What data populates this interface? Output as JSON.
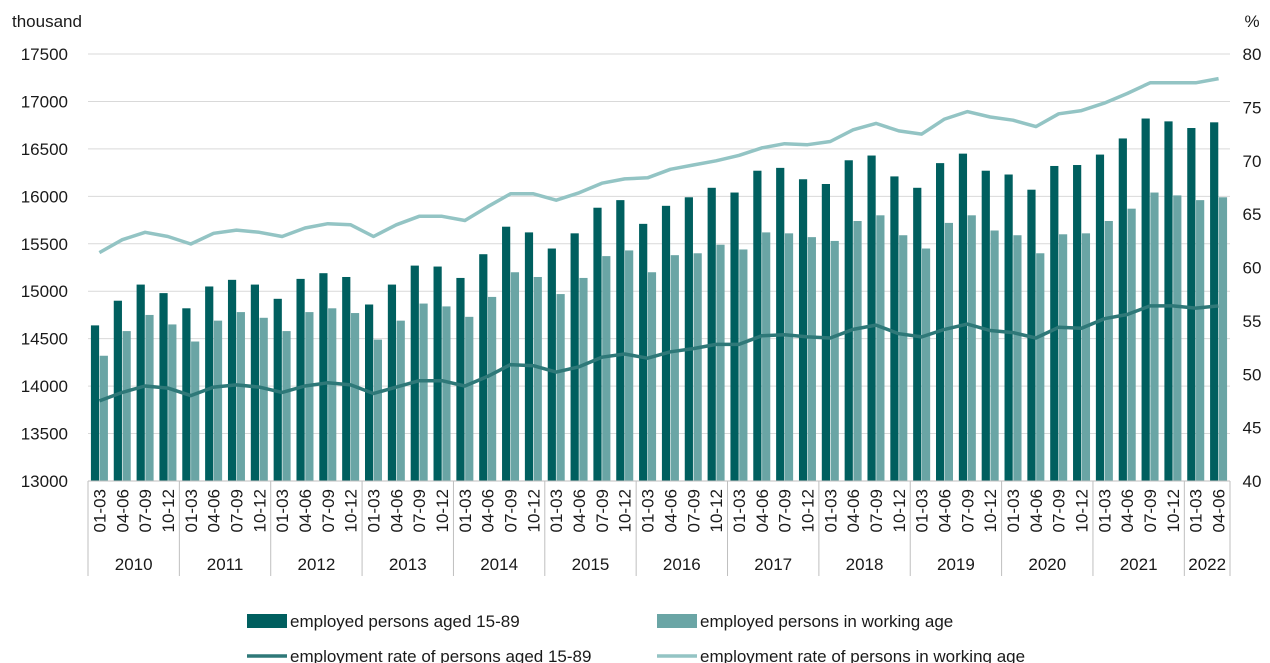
{
  "chart_data": {
    "type": "bar",
    "left_axis_unit": "thousand",
    "right_axis_unit": "%",
    "left_axis": {
      "ylim": [
        13000,
        17500
      ],
      "ticks": [
        13000,
        13500,
        14000,
        14500,
        15000,
        15500,
        16000,
        16500,
        17000,
        17500
      ]
    },
    "right_axis": {
      "ylim": [
        40,
        80
      ],
      "ticks": [
        40,
        45,
        50,
        55,
        60,
        65,
        70,
        75,
        80
      ]
    },
    "grid": true,
    "legend_position": "bottom",
    "colors": {
      "employed_15_89": "#005f5f",
      "employed_working_age": "#6aa5a5",
      "rate_15_89": "#2e7878",
      "rate_working_age": "#93c4c4"
    },
    "categories": [
      "01-03",
      "04-06",
      "07-09",
      "10-12",
      "01-03",
      "04-06",
      "07-09",
      "10-12",
      "01-03",
      "04-06",
      "07-09",
      "10-12",
      "01-03",
      "04-06",
      "07-09",
      "10-12",
      "01-03",
      "04-06",
      "07-09",
      "10-12",
      "01-03",
      "04-06",
      "07-09",
      "10-12",
      "01-03",
      "04-06",
      "07-09",
      "10-12",
      "01-03",
      "04-06",
      "07-09",
      "10-12",
      "01-03",
      "04-06",
      "07-09",
      "10-12",
      "01-03",
      "04-06",
      "07-09",
      "10-12",
      "01-03",
      "04-06",
      "07-09",
      "10-12",
      "01-03",
      "04-06",
      "07-09",
      "10-12",
      "01-03",
      "04-06"
    ],
    "years": [
      {
        "label": "2010",
        "count": 4
      },
      {
        "label": "2011",
        "count": 4
      },
      {
        "label": "2012",
        "count": 4
      },
      {
        "label": "2013",
        "count": 4
      },
      {
        "label": "2014",
        "count": 4
      },
      {
        "label": "2015",
        "count": 4
      },
      {
        "label": "2016",
        "count": 4
      },
      {
        "label": "2017",
        "count": 4
      },
      {
        "label": "2018",
        "count": 4
      },
      {
        "label": "2019",
        "count": 4
      },
      {
        "label": "2020",
        "count": 4
      },
      {
        "label": "2021",
        "count": 4
      },
      {
        "label": "2022",
        "count": 2
      }
    ],
    "series": [
      {
        "name": "employed persons aged 15-89",
        "type": "bar",
        "axis": "left",
        "values": [
          14640,
          14900,
          15070,
          14980,
          14820,
          15050,
          15120,
          15070,
          14920,
          15130,
          15190,
          15150,
          14860,
          15070,
          15270,
          15260,
          15140,
          15390,
          15680,
          15620,
          15450,
          15610,
          15880,
          15960,
          15710,
          15900,
          15990,
          16090,
          16040,
          16270,
          16300,
          16180,
          16130,
          16380,
          16430,
          16210,
          16090,
          16350,
          16450,
          16270,
          16230,
          16070,
          16320,
          16330,
          16440,
          16610,
          16820,
          16790,
          16720,
          16780
        ]
      },
      {
        "name": "employed persons in working age",
        "type": "bar",
        "axis": "left",
        "values": [
          14320,
          14580,
          14750,
          14650,
          14470,
          14690,
          14780,
          14720,
          14580,
          14780,
          14820,
          14770,
          14490,
          14690,
          14870,
          14840,
          14730,
          14940,
          15200,
          15150,
          14970,
          15140,
          15370,
          15430,
          15200,
          15380,
          15400,
          15490,
          15440,
          15620,
          15610,
          15570,
          15530,
          15740,
          15800,
          15590,
          15450,
          15720,
          15800,
          15640,
          15590,
          15400,
          15600,
          15610,
          15740,
          15870,
          16040,
          16010,
          15960,
          15990
        ]
      },
      {
        "name": "employment rate of persons aged 15-89",
        "type": "line",
        "axis": "right",
        "values": [
          47.5,
          48.3,
          48.9,
          48.7,
          48.0,
          48.8,
          49.0,
          48.8,
          48.3,
          48.9,
          49.2,
          49.0,
          48.2,
          48.8,
          49.4,
          49.4,
          48.9,
          49.8,
          50.9,
          50.8,
          50.2,
          50.7,
          51.6,
          51.9,
          51.5,
          52.1,
          52.4,
          52.8,
          52.8,
          53.6,
          53.7,
          53.5,
          53.4,
          54.2,
          54.6,
          53.8,
          53.5,
          54.2,
          54.7,
          54.1,
          53.9,
          53.4,
          54.4,
          54.3,
          55.2,
          55.6,
          56.4,
          56.4,
          56.2,
          56.4
        ]
      },
      {
        "name": "employment rate of persons in working age",
        "type": "line",
        "axis": "right",
        "values": [
          61.4,
          62.6,
          63.3,
          62.9,
          62.2,
          63.2,
          63.5,
          63.3,
          62.9,
          63.7,
          64.1,
          64.0,
          62.9,
          64.0,
          64.8,
          64.8,
          64.4,
          65.7,
          66.9,
          66.9,
          66.3,
          67.0,
          67.9,
          68.3,
          68.4,
          69.2,
          69.6,
          70.0,
          70.5,
          71.2,
          71.6,
          71.5,
          71.8,
          72.9,
          73.5,
          72.8,
          72.5,
          73.9,
          74.6,
          74.1,
          73.8,
          73.2,
          74.4,
          74.7,
          75.4,
          76.3,
          77.3,
          77.3,
          77.3,
          77.7
        ]
      }
    ]
  }
}
